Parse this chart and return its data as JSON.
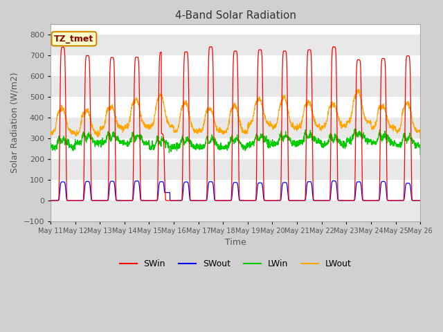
{
  "title": "4-Band Solar Radiation",
  "xlabel": "Time",
  "ylabel": "Solar Radiation (W/m2)",
  "ylim": [
    -100,
    850
  ],
  "yticks": [
    -100,
    0,
    100,
    200,
    300,
    400,
    500,
    600,
    700,
    800
  ],
  "n_days": 15,
  "date_start": 11,
  "colors": {
    "SWin": "#ff0000",
    "SWout": "#0000ff",
    "LWin": "#00cc00",
    "LWout": "#ffa500"
  },
  "legend_label": "TZ_tmet",
  "fig_bg": "#d0d0d0",
  "plot_bg": "#ffffff",
  "band_colors": [
    "#e8e8e8",
    "#ffffff"
  ],
  "grid_color": "#cccccc"
}
